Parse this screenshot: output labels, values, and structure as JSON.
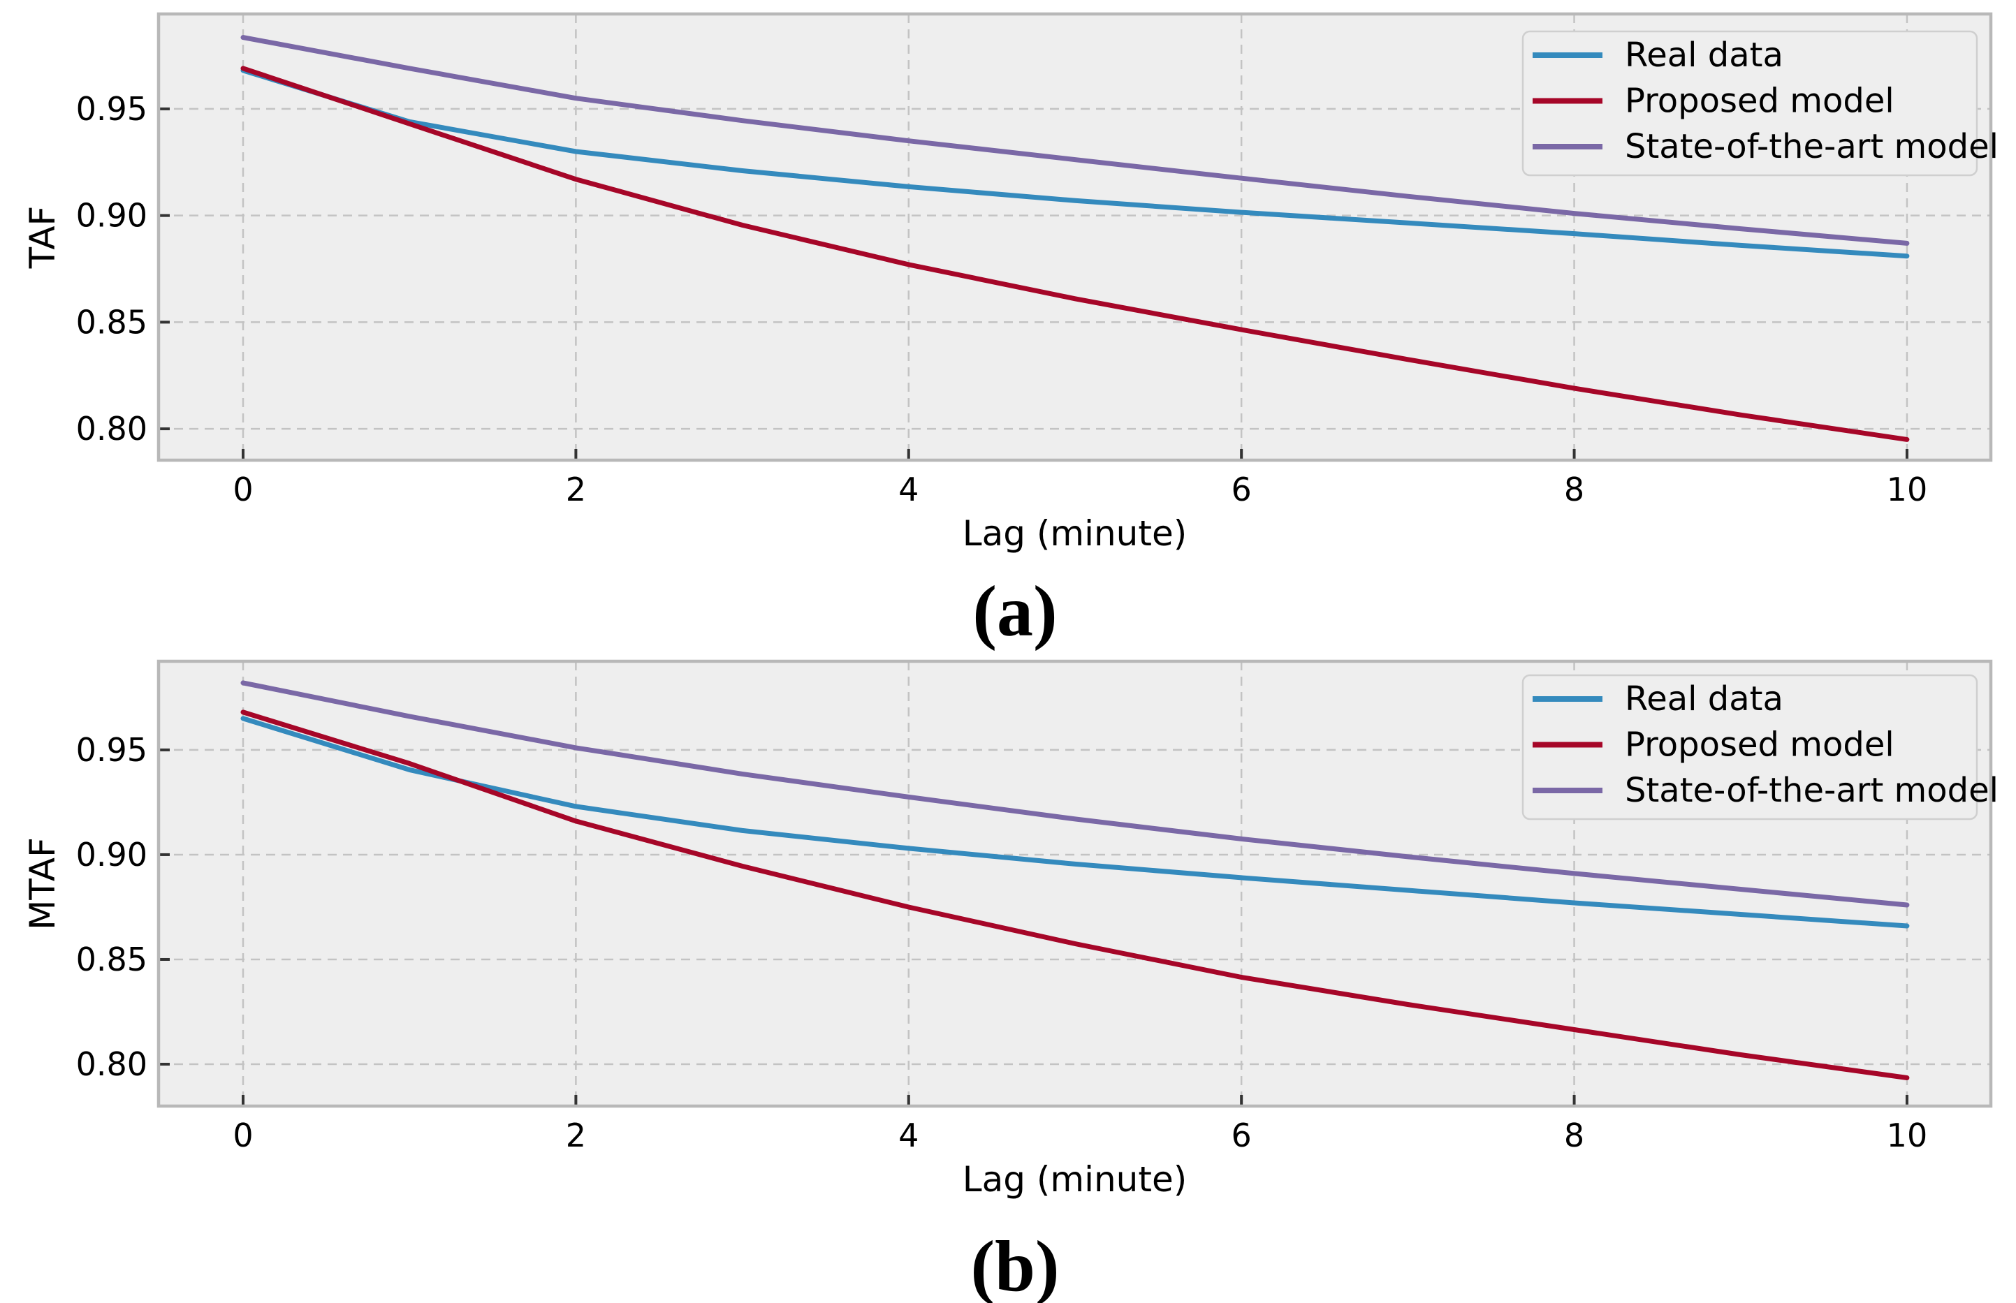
{
  "figure": {
    "caption_a": "(a)",
    "caption_b": "(b)",
    "background_color": "#ffffff",
    "plot_background_color": "#eeeeee",
    "grid_color": "#c3c3c3",
    "frame_color": "#b8b8b8",
    "tick_mark_color": "#333333",
    "text_color": "#000000",
    "legend_border_color": "#cfcfcf"
  },
  "chart_data": [
    {
      "type": "line",
      "caption": "(a)",
      "xlabel": "Lag (minute)",
      "ylabel": "TAF",
      "x": [
        0,
        1,
        2,
        3,
        4,
        5,
        6,
        7,
        8,
        9,
        10
      ],
      "xticks": [
        0,
        2,
        4,
        6,
        8,
        10
      ],
      "yticks": [
        0.8,
        0.85,
        0.9,
        0.95
      ],
      "xlim": [
        -0.508,
        10.504
      ],
      "ylim": [
        0.7853,
        0.9945
      ],
      "grid": "dashed",
      "legend_position": "upper right",
      "series": [
        {
          "name": "Real data",
          "color": "#348ABD",
          "values": [
            0.968,
            0.944,
            0.93,
            0.921,
            0.9135,
            0.907,
            0.9015,
            0.8965,
            0.8915,
            0.886,
            0.881
          ]
        },
        {
          "name": "Proposed model",
          "color": "#A60628",
          "values": [
            0.969,
            0.943,
            0.917,
            0.8955,
            0.877,
            0.861,
            0.8465,
            0.8325,
            0.819,
            0.8065,
            0.795
          ]
        },
        {
          "name": "State-of-the-art model",
          "color": "#7A68A6",
          "values": [
            0.9835,
            0.969,
            0.955,
            0.9445,
            0.935,
            0.9262,
            0.9175,
            0.909,
            0.901,
            0.8938,
            0.887
          ]
        }
      ]
    },
    {
      "type": "line",
      "caption": "(b)",
      "xlabel": "Lag (minute)",
      "ylabel": "MTAF",
      "x": [
        0,
        1,
        2,
        3,
        4,
        5,
        6,
        7,
        8,
        9,
        10
      ],
      "xticks": [
        0,
        2,
        4,
        6,
        8,
        10
      ],
      "yticks": [
        0.8,
        0.85,
        0.9,
        0.95
      ],
      "xlim": [
        -0.508,
        10.504
      ],
      "ylim": [
        0.78,
        0.9923
      ],
      "grid": "dashed",
      "legend_position": "upper right",
      "series": [
        {
          "name": "Real data",
          "color": "#348ABD",
          "values": [
            0.965,
            0.9405,
            0.923,
            0.9115,
            0.903,
            0.8955,
            0.889,
            0.883,
            0.877,
            0.8715,
            0.866
          ]
        },
        {
          "name": "Proposed model",
          "color": "#A60628",
          "values": [
            0.968,
            0.9435,
            0.916,
            0.8945,
            0.875,
            0.8575,
            0.8415,
            0.8285,
            0.8165,
            0.8045,
            0.7935
          ]
        },
        {
          "name": "State-of-the-art model",
          "color": "#7A68A6",
          "values": [
            0.982,
            0.966,
            0.951,
            0.9385,
            0.9275,
            0.917,
            0.9075,
            0.899,
            0.891,
            0.8835,
            0.876
          ]
        }
      ]
    }
  ]
}
